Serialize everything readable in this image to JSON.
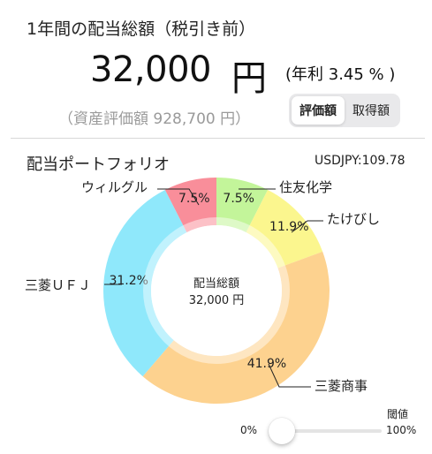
{
  "header": {
    "title": "1年間の配当総額（税引き前）",
    "total_amount": "32,000",
    "total_unit": "円",
    "yield": "(年利 3.45 % )",
    "assets": "（資産評価額 928,700 円）"
  },
  "toggle": {
    "options": [
      "評価額",
      "取得額"
    ],
    "selected": "評価額"
  },
  "portfolio": {
    "title": "配当ポートフォリオ",
    "fx_rate": "USDJPY:109.78",
    "center_label": "配当総額",
    "center_value": "32,000 円"
  },
  "threshold": {
    "label": "閾値",
    "min_label": "0%",
    "max_label": "100%",
    "value": 0
  },
  "colors": {
    "accent": "#3b82f6"
  },
  "chart_data": {
    "type": "pie",
    "title": "配当ポートフォリオ",
    "center_text": [
      "配当総額",
      "32,000 円"
    ],
    "slices": [
      {
        "name": "住友化学",
        "value": 7.5,
        "label": "7.5%",
        "color": "#c3f59a"
      },
      {
        "name": "たけびし",
        "value": 11.9,
        "label": "11.9%",
        "color": "#fbf68e"
      },
      {
        "name": "三菱商事",
        "value": 41.9,
        "label": "41.9%",
        "color": "#fdd28f"
      },
      {
        "name": "三菱ＵＦＪ",
        "value": 31.2,
        "label": "31.2%",
        "color": "#8fe8fb"
      },
      {
        "name": "ウィルグル",
        "value": 7.5,
        "label": "7.5%",
        "color": "#f98e9a"
      }
    ]
  }
}
